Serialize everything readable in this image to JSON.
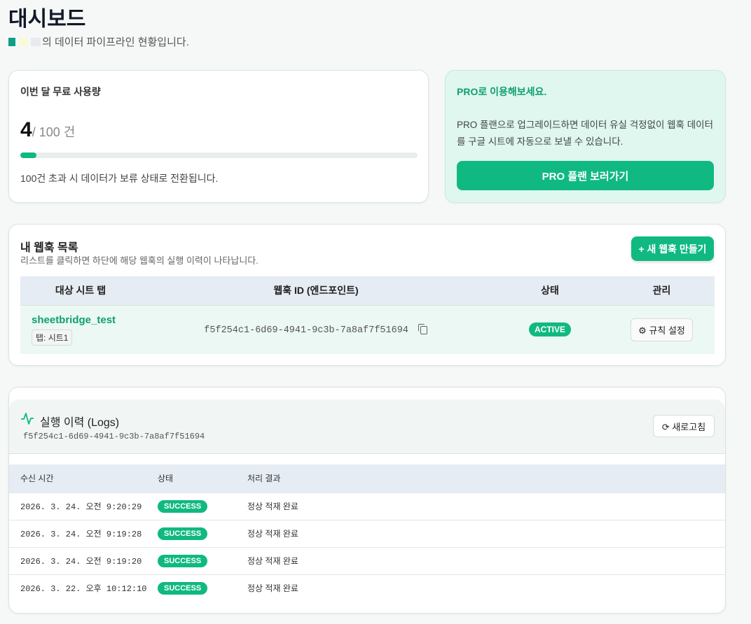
{
  "header": {
    "title": "대시보드",
    "subtitle": "의 데이터 파이프라인 현황입니다."
  },
  "usage": {
    "title": "이번 달 무료 사용량",
    "used": "4",
    "total": "/ 100 건",
    "progress_percent": 4,
    "note": "100건 초과 시 데이터가 보류 상태로 전환됩니다.",
    "accent": "#10b981"
  },
  "pro": {
    "title": "PRO로 이용해보세요.",
    "description": "PRO 플랜으로 업그레이드하면 데이터 유실 걱정없이 웹훅 데이터를 구글 시트에 자동으로 보낼 수 있습니다.",
    "button": "PRO 플랜 보러가기"
  },
  "webhooks": {
    "title": "내 웹훅 목록",
    "description": "리스트를 클릭하면 하단에 해당 웹훅의 실행 이력이 나타납니다.",
    "create_button": "+ 새 웹훅 만들기",
    "columns": [
      "대상 시트 탭",
      "웹훅 ID (엔드포인트)",
      "상태",
      "관리"
    ],
    "rows": [
      {
        "sheet": "sheetbridge_test",
        "tab": "탭: 시트1",
        "id": "f5f254c1-6d69-4941-9c3b-7a8af7f51694",
        "status": "ACTIVE",
        "action": "규칙 설정"
      }
    ]
  },
  "logs": {
    "title": "실행 이력 (Logs)",
    "webhook_id": "f5f254c1-6d69-4941-9c3b-7a8af7f51694",
    "refresh_button": "새로고침",
    "columns": [
      "수신 시간",
      "상태",
      "처리 결과"
    ],
    "rows": [
      {
        "time": "2026. 3. 24. 오전 9:20:29",
        "status": "SUCCESS",
        "result": "정상 적재 완료"
      },
      {
        "time": "2026. 3. 24. 오전 9:19:28",
        "status": "SUCCESS",
        "result": "정상 적재 완료"
      },
      {
        "time": "2026. 3. 24. 오전 9:19:20",
        "status": "SUCCESS",
        "result": "정상 적재 완료"
      },
      {
        "time": "2026. 3. 22. 오후 10:12:10",
        "status": "SUCCESS",
        "result": "정상 적재 완료"
      }
    ]
  }
}
